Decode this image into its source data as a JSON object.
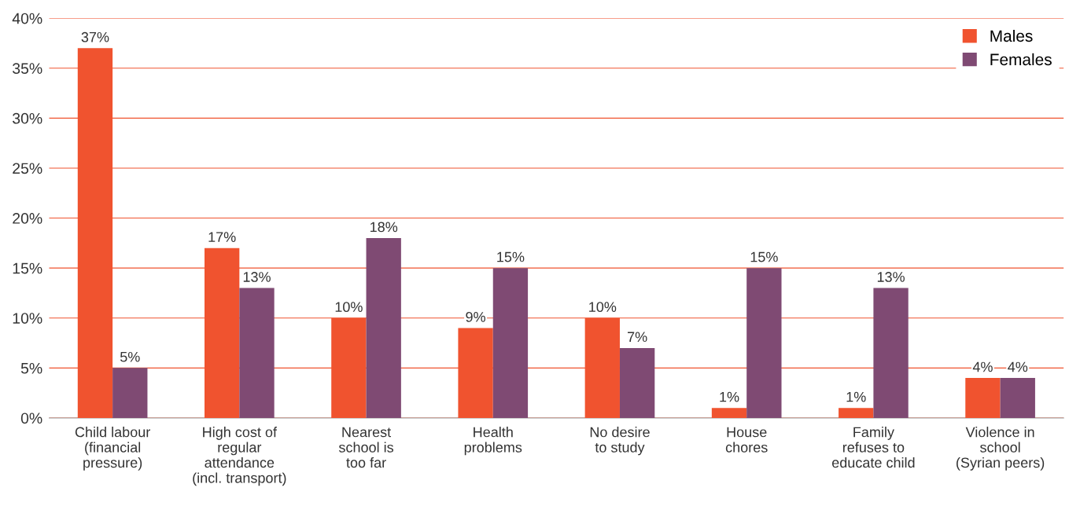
{
  "chart_data": {
    "type": "bar",
    "categories": [
      "Child labour\n(financial\npressure)",
      "High cost of\nregular\nattendance\n(incl. transport)",
      "Nearest\nschool is\ntoo far",
      "Health\nproblems",
      "No desire\nto study",
      "House\nchores",
      "Family\nrefuses to\neducate child",
      "Violence in\nschool\n(Syrian peers)"
    ],
    "series": [
      {
        "name": "Males",
        "color": "#f0532f",
        "values": [
          37,
          17,
          10,
          9,
          10,
          1,
          1,
          4
        ],
        "value_labels": [
          "37%",
          "17%",
          "10%",
          "9%",
          "10%",
          "1%",
          "1%",
          "4%"
        ]
      },
      {
        "name": "Females",
        "color": "#7f4a73",
        "values": [
          5,
          13,
          18,
          15,
          7,
          15,
          13,
          4
        ],
        "value_labels": [
          "5%",
          "13%",
          "18%",
          "15%",
          "7%",
          "15%",
          "13%",
          "4%"
        ]
      }
    ],
    "ylim": [
      0,
      40
    ],
    "yticks": [
      {
        "value": 0,
        "label": "0%"
      },
      {
        "value": 5,
        "label": "5%"
      },
      {
        "value": 10,
        "label": "10%"
      },
      {
        "value": 15,
        "label": "15%"
      },
      {
        "value": 20,
        "label": "20%"
      },
      {
        "value": 25,
        "label": "25%"
      },
      {
        "value": 30,
        "label": "30%"
      },
      {
        "value": 35,
        "label": "35%"
      },
      {
        "value": 40,
        "label": "40%"
      }
    ],
    "grid": "y",
    "legend": "top right"
  }
}
